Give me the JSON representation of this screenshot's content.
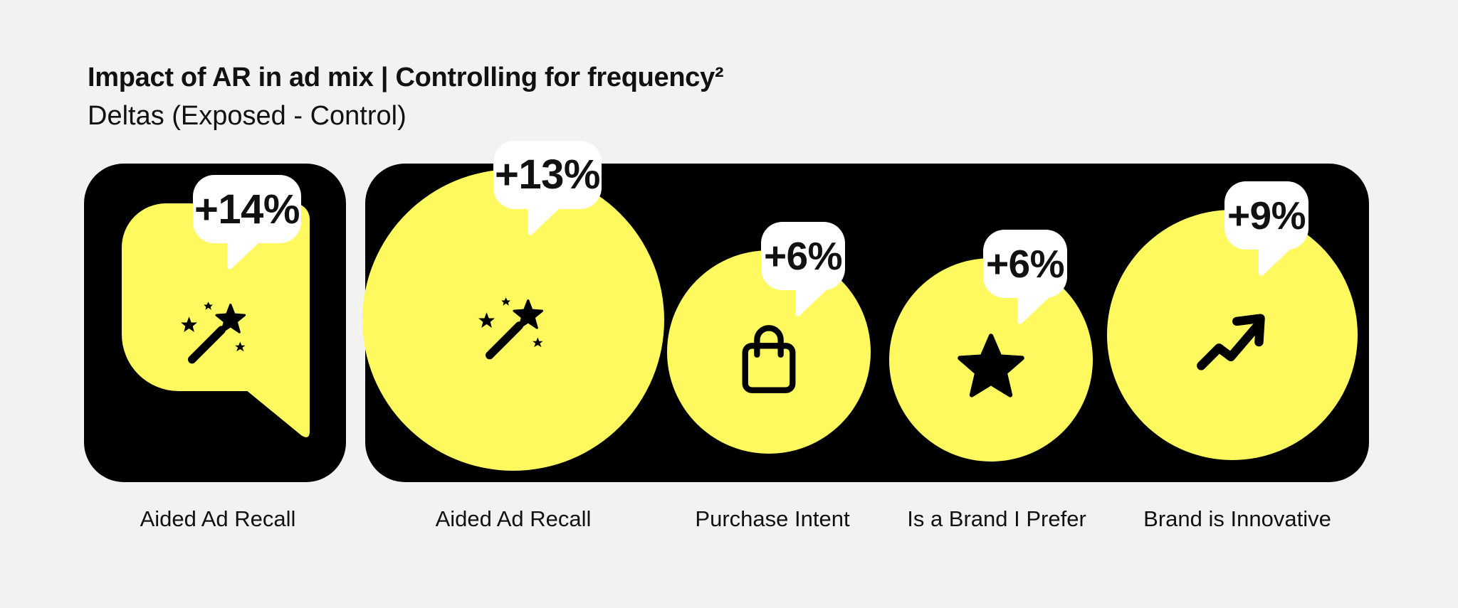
{
  "title": "Impact of AR in ad mix | Controlling for frequency²",
  "subtitle": "Deltas (Exposed - Control)",
  "colors": {
    "background": "#f2f2f2",
    "panel": "#000000",
    "accent": "#fff960",
    "bubble": "#ffffff",
    "text": "#111111"
  },
  "chart_data": {
    "type": "bubble",
    "title": "Impact of AR in ad mix | Controlling for frequency²",
    "subtitle": "Deltas (Exposed - Control)",
    "unit": "%",
    "groups": [
      {
        "metrics": [
          {
            "label": "Aided Ad Recall",
            "value": 14,
            "display": "+14%",
            "icon": "magic-wand-icon"
          }
        ]
      },
      {
        "metrics": [
          {
            "label": "Aided Ad Recall",
            "value": 13,
            "display": "+13%",
            "icon": "magic-wand-icon"
          },
          {
            "label": "Purchase Intent",
            "value": 6,
            "display": "+6%",
            "icon": "shopping-bag-icon"
          },
          {
            "label": "Is a Brand I Prefer",
            "value": 6,
            "display": "+6%",
            "icon": "star-icon"
          },
          {
            "label": "Brand is Innovative",
            "value": 9,
            "display": "+9%",
            "icon": "trending-up-arrow-icon"
          }
        ]
      }
    ]
  }
}
